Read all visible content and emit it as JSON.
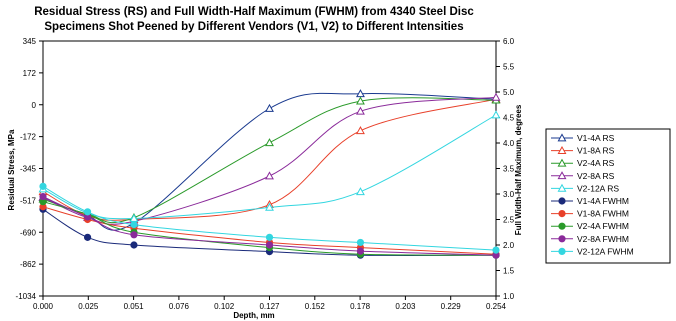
{
  "chart_data": {
    "type": "line",
    "title": [
      "Residual Stress (RS) and Full Width-Half Maximum (FWHM) from 4340 Steel Disc",
      "Specimens Shot Peened by Different Vendors (V1, V2) to Different Intensities"
    ],
    "xlabel": "Depth, mm",
    "ylabel": "Residual Stress, MPa",
    "y2label": "Full Width-Half Maximum, degrees",
    "x_ticks": [
      "0.000",
      "0.025",
      "0.051",
      "0.076",
      "0.102",
      "0.127",
      "0.152",
      "0.178",
      "0.203",
      "0.229",
      "0.254"
    ],
    "y_ticks": [
      "345",
      "172",
      "0",
      "-172",
      "-345",
      "-517",
      "-690",
      "-862",
      "-1034"
    ],
    "y2_ticks": [
      "6.0",
      "5.5",
      "5.0",
      "4.5",
      "4.0",
      "3.5",
      "3.0",
      "2.5",
      "2.0",
      "1.5",
      "1.0"
    ],
    "xlim": [
      0,
      0.254
    ],
    "ylim": [
      -1034,
      345
    ],
    "y2lim": [
      1.0,
      6.0
    ],
    "grid": false,
    "legend_position": "right",
    "series": [
      {
        "name": "V1-4A RS",
        "axis": "left",
        "marker": "triangle",
        "color": "#1a3a8f",
        "x": [
          0.0,
          0.025,
          0.051,
          0.127,
          0.178,
          0.254
        ],
        "y": [
          -500,
          -600,
          -640,
          -20,
          60,
          30
        ]
      },
      {
        "name": "V1-8A RS",
        "axis": "left",
        "marker": "triangle",
        "color": "#e8402a",
        "x": [
          0.0,
          0.025,
          0.051,
          0.127,
          0.178,
          0.254
        ],
        "y": [
          -470,
          -600,
          -620,
          -540,
          -140,
          30
        ]
      },
      {
        "name": "V2-4A RS",
        "axis": "left",
        "marker": "triangle",
        "color": "#2a9a2a",
        "x": [
          0.0,
          0.025,
          0.051,
          0.127,
          0.178,
          0.254
        ],
        "y": [
          -510,
          -590,
          -610,
          -205,
          20,
          25
        ]
      },
      {
        "name": "V2-8A RS",
        "axis": "left",
        "marker": "triangle",
        "color": "#8a2a9a",
        "x": [
          0.0,
          0.025,
          0.051,
          0.127,
          0.178,
          0.254
        ],
        "y": [
          -500,
          -610,
          -630,
          -385,
          -35,
          40
        ]
      },
      {
        "name": "V2-12A RS",
        "axis": "left",
        "marker": "triangle",
        "color": "#33d6e0",
        "x": [
          0.0,
          0.025,
          0.051,
          0.127,
          0.178,
          0.254
        ],
        "y": [
          -455,
          -585,
          -615,
          -555,
          -470,
          -55
        ]
      },
      {
        "name": "V1-4A FWHM",
        "axis": "right",
        "marker": "circle",
        "color": "#1a2a7a",
        "x": [
          0.0,
          0.025,
          0.051,
          0.127,
          0.178,
          0.254
        ],
        "y": [
          2.7,
          2.15,
          2.0,
          1.87,
          1.8,
          1.8
        ]
      },
      {
        "name": "V1-8A FWHM",
        "axis": "right",
        "marker": "circle",
        "color": "#e8402a",
        "x": [
          0.0,
          0.025,
          0.051,
          0.127,
          0.178,
          0.254
        ],
        "y": [
          2.75,
          2.5,
          2.33,
          2.05,
          1.95,
          1.82
        ]
      },
      {
        "name": "V2-4A FWHM",
        "axis": "right",
        "marker": "circle",
        "color": "#2a9a2a",
        "x": [
          0.0,
          0.025,
          0.051,
          0.127,
          0.178,
          0.254
        ],
        "y": [
          2.85,
          2.6,
          2.25,
          1.95,
          1.82,
          1.8
        ]
      },
      {
        "name": "V2-8A FWHM",
        "axis": "right",
        "marker": "circle",
        "color": "#8a2a9a",
        "x": [
          0.0,
          0.025,
          0.051,
          0.127,
          0.178,
          0.254
        ],
        "y": [
          2.95,
          2.55,
          2.2,
          2.0,
          1.88,
          1.8
        ]
      },
      {
        "name": "V2-12A FWHM",
        "axis": "right",
        "marker": "circle",
        "color": "#33d6e0",
        "x": [
          0.0,
          0.025,
          0.051,
          0.127,
          0.178,
          0.254
        ],
        "y": [
          3.15,
          2.65,
          2.4,
          2.15,
          2.05,
          1.9
        ]
      }
    ]
  }
}
